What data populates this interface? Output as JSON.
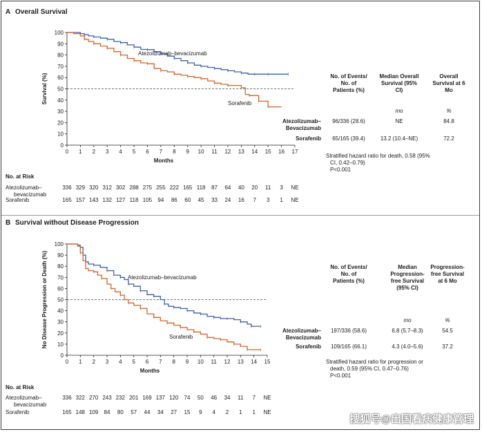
{
  "watermark": "搜狐号@出国看病健康管理",
  "chart_data": [
    {
      "type": "line",
      "panel": "A",
      "title": "Overall Survival",
      "xlabel": "Months",
      "ylabel": "Survival (%)",
      "xlim": [
        0,
        17
      ],
      "ylim": [
        0,
        100
      ],
      "xticks": [
        "0",
        "1",
        "2",
        "3",
        "4",
        "5",
        "6",
        "7",
        "8",
        "9",
        "10",
        "11",
        "12",
        "13",
        "14",
        "15",
        "16",
        "17"
      ],
      "yticks": [
        "0",
        "10",
        "20",
        "30",
        "40",
        "50",
        "60",
        "70",
        "80",
        "90",
        "100"
      ],
      "reference_line": 50,
      "series": [
        {
          "name": "Atezolizumab–bevacizumab",
          "color": "#3e5fa8",
          "points": [
            [
              0,
              100
            ],
            [
              0.5,
              100
            ],
            [
              1,
              99
            ],
            [
              1.3,
              98
            ],
            [
              1.6,
              97
            ],
            [
              2,
              96
            ],
            [
              2.5,
              95
            ],
            [
              3,
              94
            ],
            [
              3.5,
              92
            ],
            [
              4,
              91
            ],
            [
              4.5,
              89
            ],
            [
              5,
              87
            ],
            [
              5.5,
              85
            ],
            [
              6,
              84.8
            ],
            [
              6.5,
              83
            ],
            [
              7,
              81
            ],
            [
              7.5,
              79
            ],
            [
              8,
              77
            ],
            [
              8.5,
              75
            ],
            [
              9,
              73
            ],
            [
              9.5,
              71
            ],
            [
              10,
              70
            ],
            [
              10.5,
              69
            ],
            [
              11,
              68
            ],
            [
              11.5,
              67
            ],
            [
              12,
              66
            ],
            [
              12.5,
              65
            ],
            [
              13,
              64
            ],
            [
              13.5,
              63
            ],
            [
              14,
              63
            ],
            [
              14.5,
              63
            ],
            [
              15,
              63
            ],
            [
              16,
              63
            ],
            [
              16.5,
              63
            ]
          ]
        },
        {
          "name": "Sorafenib",
          "color": "#d0632a",
          "points": [
            [
              0,
              100
            ],
            [
              0.5,
              99
            ],
            [
              1,
              97
            ],
            [
              1.3,
              94
            ],
            [
              1.6,
              92
            ],
            [
              2,
              90
            ],
            [
              2.5,
              88
            ],
            [
              3,
              86
            ],
            [
              3.5,
              83
            ],
            [
              4,
              80
            ],
            [
              4.5,
              77
            ],
            [
              5,
              75
            ],
            [
              5.5,
              73
            ],
            [
              6,
              72.2
            ],
            [
              6.5,
              68
            ],
            [
              7,
              66
            ],
            [
              7.5,
              65
            ],
            [
              8,
              63
            ],
            [
              8.5,
              62
            ],
            [
              9,
              61
            ],
            [
              9.5,
              60
            ],
            [
              10,
              59
            ],
            [
              10.5,
              57
            ],
            [
              11,
              55
            ],
            [
              11.5,
              54
            ],
            [
              12,
              53
            ],
            [
              12.5,
              53
            ],
            [
              13,
              51
            ],
            [
              13.3,
              45
            ],
            [
              13.6,
              44
            ],
            [
              14,
              44
            ],
            [
              14.3,
              39
            ],
            [
              14.7,
              39
            ],
            [
              15,
              34
            ],
            [
              16,
              34
            ]
          ]
        }
      ],
      "series_labels": [
        "Atezolizumab–bevacizumab",
        "Sorafenib"
      ],
      "table": {
        "headers": [
          "No. of Events/ No. of Patients (%)",
          "Median Overall Survival (95% CI)",
          "Overall Survival at 6 Mo"
        ],
        "units": [
          "",
          "mo",
          "%"
        ],
        "rows": [
          {
            "label": "Atezolizumab– Bevacizumab",
            "events": "96/336 (28.6)",
            "median": "NE",
            "at6": "84.8"
          },
          {
            "label": "Sorafenib",
            "events": "65/165 (39.4)",
            "median": "13.2 (10.4–NE)",
            "at6": "72.2"
          }
        ],
        "note": "Stratified hazard ratio for death, 0.58 (95% CI, 0.42–0.79) P<0.001"
      },
      "risk": {
        "title": "No. at Risk",
        "rows": [
          {
            "label": "Atezolizumab– bevacizumab",
            "values": [
              "336",
              "329",
              "320",
              "312",
              "302",
              "288",
              "275",
              "255",
              "222",
              "165",
              "118",
              "87",
              "64",
              "40",
              "20",
              "11",
              "3",
              "NE"
            ]
          },
          {
            "label": "Sorafenib",
            "values": [
              "165",
              "157",
              "143",
              "132",
              "127",
              "118",
              "105",
              "94",
              "86",
              "60",
              "45",
              "33",
              "24",
              "16",
              "7",
              "3",
              "1",
              "NE"
            ]
          }
        ]
      }
    },
    {
      "type": "line",
      "panel": "B",
      "title": "Survival without Disease Progression",
      "xlabel": "Months",
      "ylabel": "No Disease Progression or Death (%)",
      "xlim": [
        0,
        15
      ],
      "ylim": [
        0,
        100
      ],
      "xticks": [
        "0",
        "1",
        "2",
        "3",
        "4",
        "5",
        "6",
        "7",
        "8",
        "9",
        "10",
        "11",
        "12",
        "13",
        "14",
        "15"
      ],
      "yticks": [
        "0",
        "10",
        "20",
        "30",
        "40",
        "50",
        "60",
        "70",
        "80",
        "90",
        "100"
      ],
      "reference_line": 50,
      "series": [
        {
          "name": "Atezolizumab–bevacizumab",
          "color": "#3e5fa8",
          "points": [
            [
              0,
              100
            ],
            [
              0.5,
              100
            ],
            [
              0.8,
              99
            ],
            [
              1,
              97
            ],
            [
              1.2,
              90
            ],
            [
              1.4,
              84
            ],
            [
              1.6,
              82
            ],
            [
              2,
              81
            ],
            [
              2.5,
              79
            ],
            [
              3,
              76
            ],
            [
              3.5,
              72
            ],
            [
              4,
              70
            ],
            [
              4.3,
              68
            ],
            [
              4.6,
              64
            ],
            [
              5,
              62
            ],
            [
              5.5,
              58
            ],
            [
              6,
              54.5
            ],
            [
              6.5,
              53
            ],
            [
              7,
              50
            ],
            [
              7.3,
              46
            ],
            [
              7.6,
              44
            ],
            [
              8,
              43
            ],
            [
              8.5,
              42
            ],
            [
              9,
              40
            ],
            [
              9.5,
              38
            ],
            [
              10,
              37
            ],
            [
              10.5,
              35
            ],
            [
              11,
              34
            ],
            [
              11.5,
              33
            ],
            [
              12,
              33
            ],
            [
              12.5,
              32
            ],
            [
              13,
              30
            ],
            [
              13.5,
              28
            ],
            [
              13.8,
              26
            ],
            [
              14,
              26
            ],
            [
              14.5,
              26
            ]
          ]
        },
        {
          "name": "Sorafenib",
          "color": "#d0632a",
          "points": [
            [
              0,
              100
            ],
            [
              0.5,
              100
            ],
            [
              0.8,
              98
            ],
            [
              1,
              92
            ],
            [
              1.2,
              85
            ],
            [
              1.4,
              78
            ],
            [
              1.6,
              76
            ],
            [
              2,
              75
            ],
            [
              2.3,
              72
            ],
            [
              2.6,
              69
            ],
            [
              3,
              64
            ],
            [
              3.3,
              60
            ],
            [
              3.6,
              57
            ],
            [
              4,
              54
            ],
            [
              4.3,
              50
            ],
            [
              4.6,
              47
            ],
            [
              5,
              45
            ],
            [
              5.5,
              42
            ],
            [
              6,
              37.2
            ],
            [
              6.5,
              34
            ],
            [
              7,
              31
            ],
            [
              7.5,
              29
            ],
            [
              8,
              27
            ],
            [
              8.5,
              25
            ],
            [
              9,
              23
            ],
            [
              9.5,
              21
            ],
            [
              10,
              19
            ],
            [
              10.5,
              16
            ],
            [
              11,
              15
            ],
            [
              11.5,
              14
            ],
            [
              12,
              12
            ],
            [
              12.5,
              10
            ],
            [
              13,
              8
            ],
            [
              13.5,
              5
            ],
            [
              14,
              5
            ],
            [
              14.5,
              5
            ]
          ]
        }
      ],
      "series_labels": [
        "Atezolizumab–bevacizumab",
        "Sorafenib"
      ],
      "table": {
        "headers": [
          "No. of Events/ No. of Patients (%)",
          "Median Progression- free Survival (95% CI)",
          "Progression- free Survival at 6 Mo"
        ],
        "units": [
          "",
          "mo",
          "%"
        ],
        "rows": [
          {
            "label": "Atezolizumab– Bevacizumab",
            "events": "197/336 (58.6)",
            "median": "6.8 (5.7–8.3)",
            "at6": "54.5"
          },
          {
            "label": "Sorafenib",
            "events": "109/165 (66.1)",
            "median": "4.3 (4.0–5.6)",
            "at6": "37.2"
          }
        ],
        "note": "Stratified hazard ratio for progression or death, 0.59 (95% CI, 0.47–0.76) P<0.001"
      },
      "risk": {
        "title": "No. at Risk",
        "rows": [
          {
            "label": "Atezolizumab– bevacizumab",
            "values": [
              "336",
              "322",
              "270",
              "243",
              "232",
              "201",
              "169",
              "137",
              "120",
              "74",
              "50",
              "46",
              "34",
              "11",
              "7",
              "NE"
            ]
          },
          {
            "label": "Sorafenib",
            "values": [
              "165",
              "148",
              "109",
              "84",
              "80",
              "57",
              "44",
              "34",
              "27",
              "15",
              "9",
              "4",
              "2",
              "1",
              "1",
              "NE"
            ]
          }
        ]
      }
    }
  ]
}
